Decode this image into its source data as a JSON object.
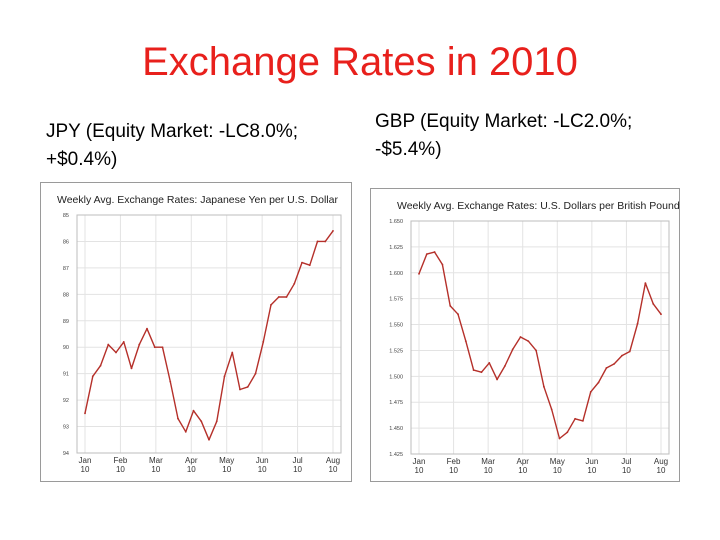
{
  "slide": {
    "title": "Exchange Rates in 2010",
    "left_caption": "JPY (Equity Market: -LC8.0%; +$0.4%)",
    "right_caption": "GBP (Equity Market: -LC2.0%; -$5.4%)"
  },
  "style": {
    "title_color": "#e8201c",
    "series_color": "#b5302a",
    "grid_color": "#e3e3e3"
  },
  "chart_data": [
    {
      "type": "line",
      "title": "Weekly Avg. Exchange Rates: Japanese Yen per U.S. Dollar",
      "y_ticks": [
        "85",
        "86",
        "87",
        "88",
        "89",
        "90",
        "91",
        "92",
        "93",
        "94"
      ],
      "y_axis_inverted": true,
      "ylim": [
        85,
        94
      ],
      "x_ticks": [
        [
          "Jan",
          "10"
        ],
        [
          "Feb",
          "10"
        ],
        [
          "Mar",
          "10"
        ],
        [
          "Apr",
          "10"
        ],
        [
          "May",
          "10"
        ],
        [
          "Jun",
          "10"
        ],
        [
          "Jul",
          "10"
        ],
        [
          "Aug",
          "10"
        ]
      ],
      "grid": true,
      "series": [
        {
          "values": [
            92.5,
            91.1,
            90.7,
            89.9,
            90.2,
            89.8,
            90.8,
            89.9,
            89.3,
            90.0,
            90.0,
            91.3,
            92.7,
            93.2,
            92.4,
            92.8,
            93.5,
            92.8,
            91.1,
            90.2,
            91.6,
            91.5,
            91.0,
            89.8,
            88.4,
            88.1,
            88.1,
            87.6,
            86.8,
            86.9,
            86.0,
            86.0,
            85.6
          ]
        }
      ]
    },
    {
      "type": "line",
      "title": "Weekly Avg. Exchange Rates: U.S. Dollars per British Pound",
      "y_ticks": [
        "1.650",
        "1.625",
        "1.600",
        "1.575",
        "1.550",
        "1.525",
        "1.500",
        "1.475",
        "1.450",
        "1.425"
      ],
      "ylim": [
        1.425,
        1.65
      ],
      "x_ticks": [
        [
          "Jan",
          "10"
        ],
        [
          "Feb",
          "10"
        ],
        [
          "Mar",
          "10"
        ],
        [
          "Apr",
          "10"
        ],
        [
          "May",
          "10"
        ],
        [
          "Jun",
          "10"
        ],
        [
          "Jul",
          "10"
        ],
        [
          "Aug",
          "10"
        ]
      ],
      "grid": true,
      "series": [
        {
          "values": [
            1.599,
            1.618,
            1.62,
            1.608,
            1.568,
            1.56,
            1.534,
            1.506,
            1.504,
            1.513,
            1.497,
            1.51,
            1.526,
            1.538,
            1.534,
            1.525,
            1.49,
            1.468,
            1.44,
            1.446,
            1.459,
            1.457,
            1.485,
            1.494,
            1.508,
            1.512,
            1.52,
            1.524,
            1.551,
            1.59,
            1.57,
            1.56
          ]
        }
      ]
    }
  ]
}
